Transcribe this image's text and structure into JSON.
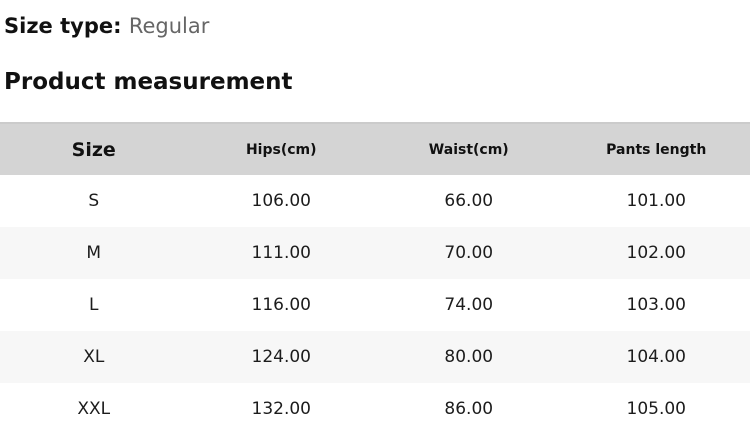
{
  "page": {
    "size_type_label": "Size type:",
    "size_type_value": "Regular",
    "section_title": "Product measurement"
  },
  "measurement_table": {
    "columns": [
      "Size",
      "Hips(cm)",
      "Waist(cm)",
      "Pants length"
    ],
    "rows": [
      [
        "S",
        "106.00",
        "66.00",
        "101.00"
      ],
      [
        "M",
        "111.00",
        "70.00",
        "102.00"
      ],
      [
        "L",
        "116.00",
        "74.00",
        "103.00"
      ],
      [
        "XL",
        "124.00",
        "80.00",
        "104.00"
      ],
      [
        "XXL",
        "132.00",
        "86.00",
        "105.00"
      ]
    ]
  },
  "colors": {
    "header_bg": "#d4d4d4",
    "stripe_bg": "#f7f7f7",
    "heading_text": "#111111",
    "cell_text": "#1c1c1c",
    "muted_text": "#666666",
    "table_top_border": "#cbcbcb"
  }
}
